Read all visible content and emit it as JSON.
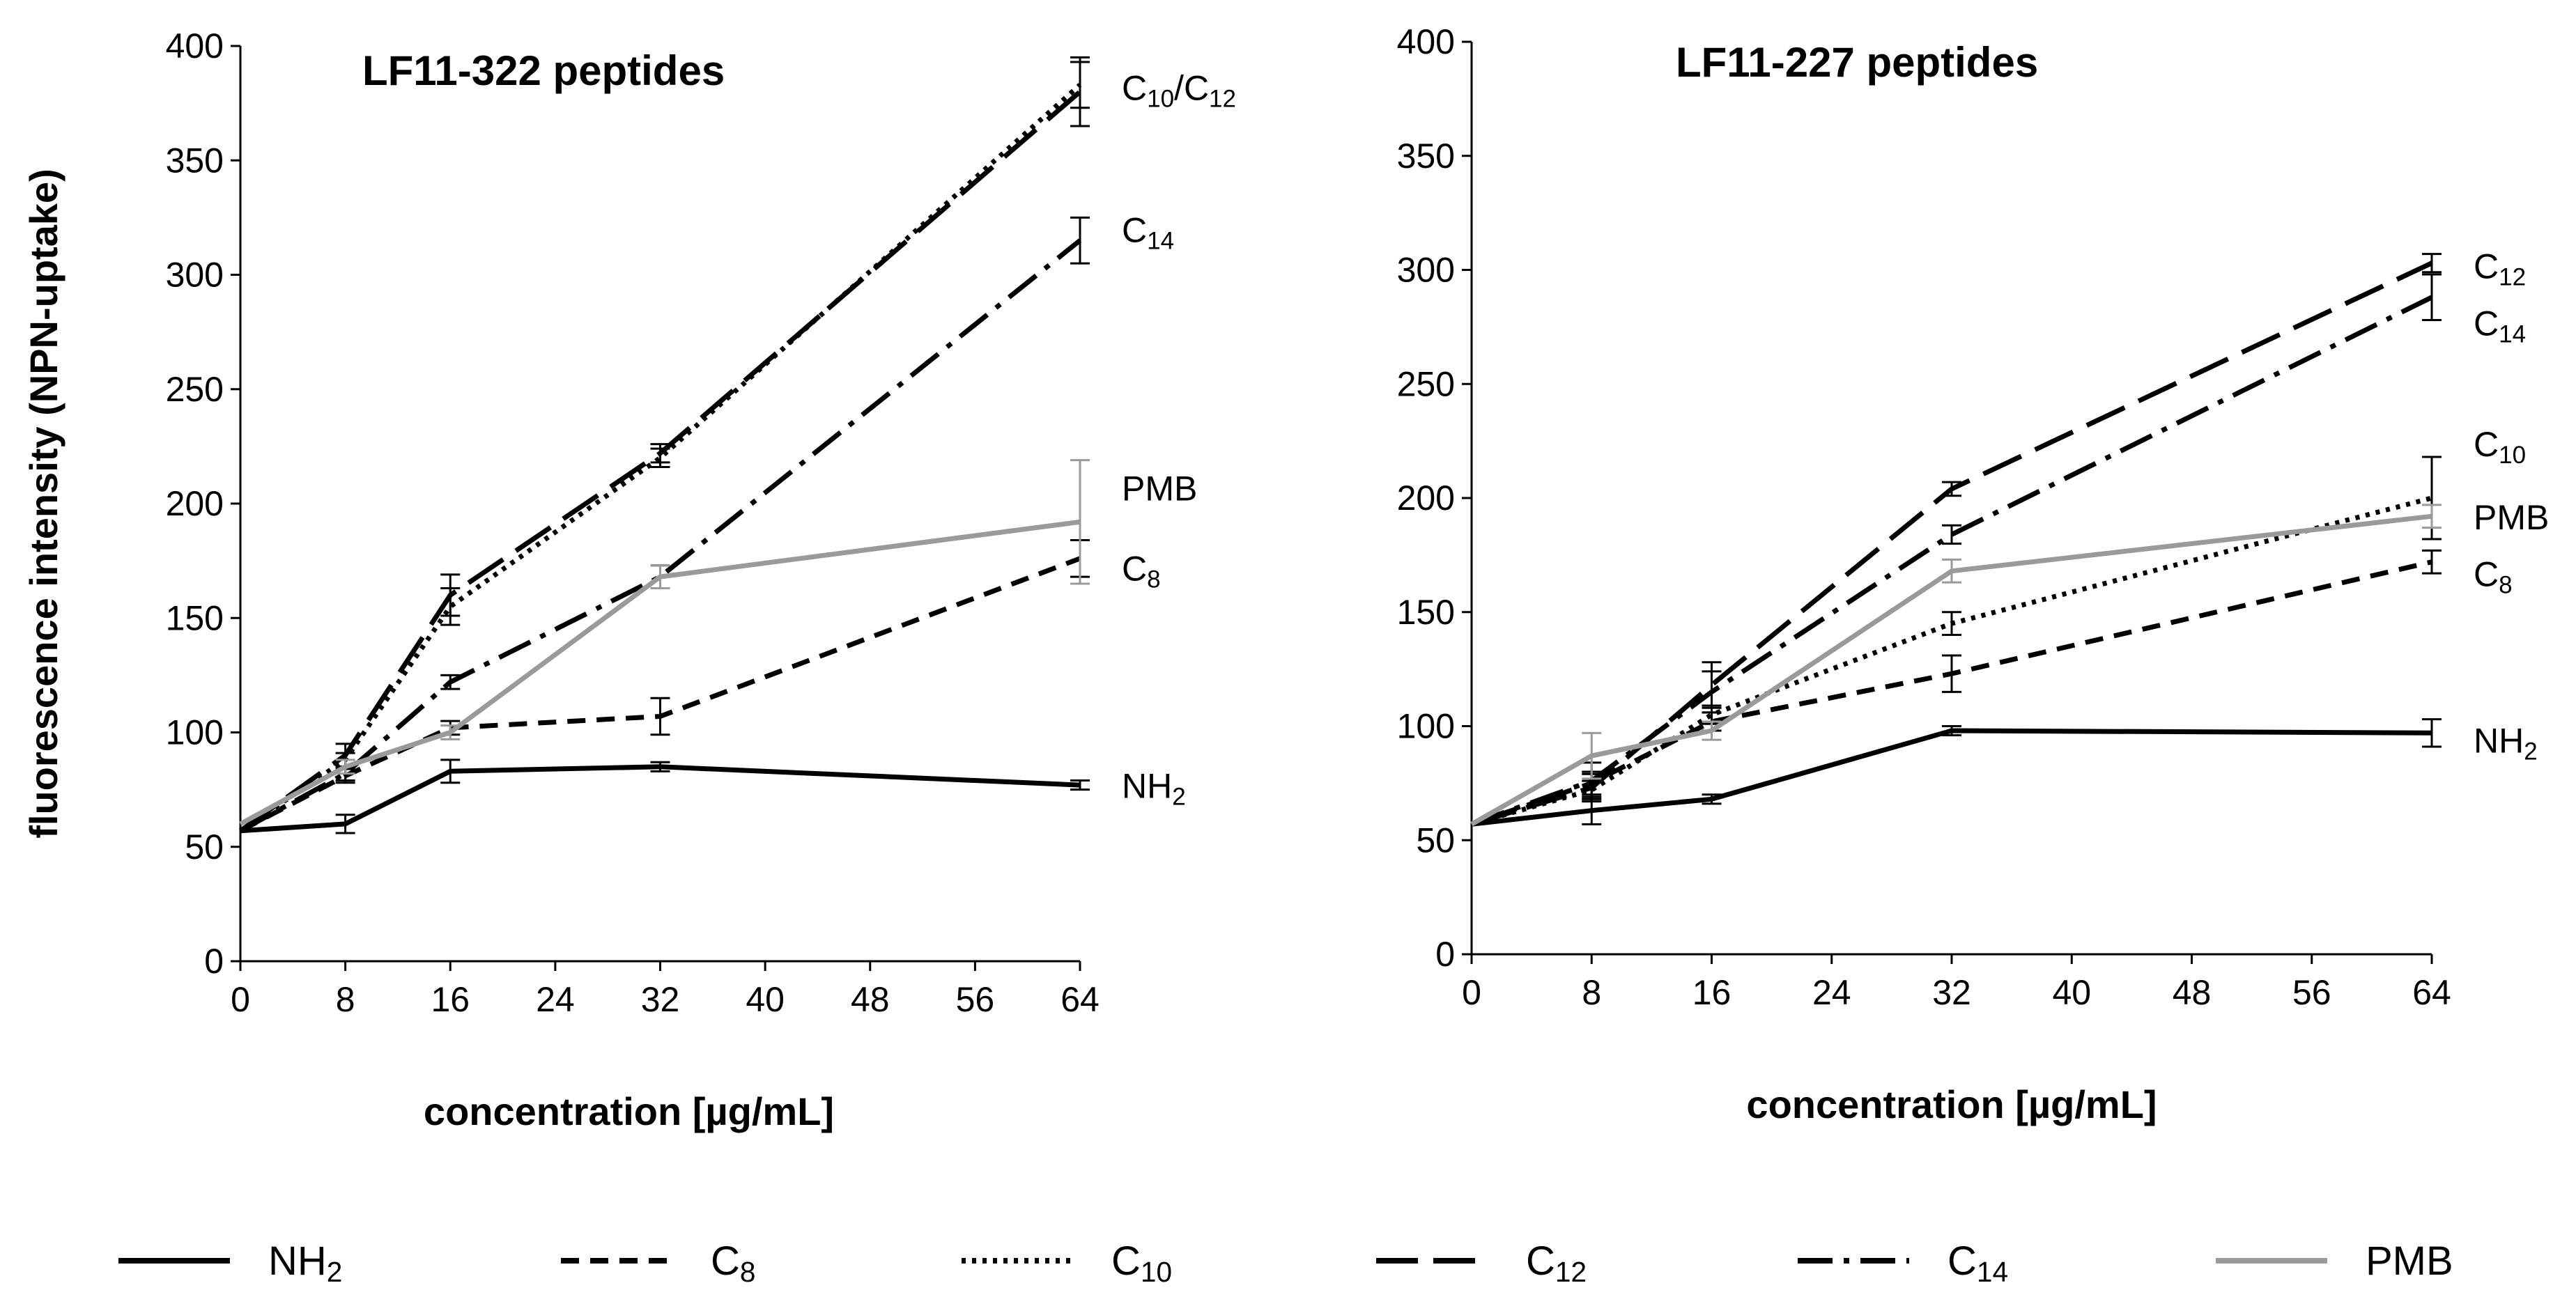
{
  "styles": {
    "NH2": {
      "color": "#000000",
      "dash": ""
    },
    "C8": {
      "color": "#000000",
      "dash": "26,16"
    },
    "C10": {
      "color": "#000000",
      "dash": "6,9"
    },
    "C12": {
      "color": "#000000",
      "dash": "60,22"
    },
    "C14": {
      "color": "#000000",
      "dash": "50,16,8,16"
    },
    "PMB": {
      "color": "#9a9a9a",
      "dash": ""
    }
  },
  "legend": [
    {
      "key": "NH2",
      "base": "NH",
      "sub": "2"
    },
    {
      "key": "C8",
      "base": "C",
      "sub": "8"
    },
    {
      "key": "C10",
      "base": "C",
      "sub": "10"
    },
    {
      "key": "C12",
      "base": "C",
      "sub": "12"
    },
    {
      "key": "C14",
      "base": "C",
      "sub": "14"
    },
    {
      "key": "PMB",
      "base": "PMB",
      "sub": ""
    }
  ],
  "chart_data": [
    {
      "type": "line",
      "title": "LF11-322 peptides",
      "xlabel": "concentration [µg/mL]",
      "ylabel": "fluorescence intensity (NPN-uptake)",
      "xlim": [
        0,
        64
      ],
      "ylim": [
        0,
        400
      ],
      "xticks": [
        0,
        8,
        16,
        24,
        32,
        40,
        48,
        56,
        64
      ],
      "yticks": [
        0,
        50,
        100,
        150,
        200,
        250,
        300,
        350,
        400
      ],
      "x": [
        0,
        8,
        16,
        32,
        64
      ],
      "series": [
        {
          "name": "NH2",
          "values": [
            57,
            60,
            83,
            85,
            77
          ],
          "errors": [
            0,
            4,
            5,
            2,
            2
          ]
        },
        {
          "name": "C8",
          "values": [
            57,
            81,
            102,
            107,
            176
          ],
          "errors": [
            0,
            3,
            3,
            8,
            8
          ]
        },
        {
          "name": "C10",
          "values": [
            57,
            88,
            155,
            220,
            383
          ],
          "errors": [
            0,
            3,
            8,
            4,
            10
          ]
        },
        {
          "name": "C12",
          "values": [
            57,
            90,
            160,
            222,
            380
          ],
          "errors": [
            0,
            5,
            9,
            4,
            15
          ]
        },
        {
          "name": "C14",
          "values": [
            57,
            82,
            122,
            168,
            315
          ],
          "errors": [
            0,
            3,
            3,
            5,
            10
          ]
        },
        {
          "name": "PMB",
          "values": [
            60,
            85,
            100,
            168,
            192
          ],
          "errors": [
            0,
            3,
            3,
            5,
            27
          ]
        }
      ],
      "end_labels": [
        {
          "base": "C",
          "sub": "10",
          "mid": "/C",
          "sub2": "12",
          "value": 380
        },
        {
          "base": "C",
          "sub": "14",
          "value": 318
        },
        {
          "base": "PMB",
          "sub": "",
          "value": 205
        },
        {
          "base": "C",
          "sub": "8",
          "value": 170
        },
        {
          "base": "NH",
          "sub": "2",
          "value": 75
        }
      ]
    },
    {
      "type": "line",
      "title": "LF11-227 peptides",
      "xlabel": "concentration [µg/mL]",
      "ylabel": "",
      "xlim": [
        0,
        64
      ],
      "ylim": [
        0,
        400
      ],
      "xticks": [
        0,
        8,
        16,
        24,
        32,
        40,
        48,
        56,
        64
      ],
      "yticks": [
        0,
        50,
        100,
        150,
        200,
        250,
        300,
        350,
        400
      ],
      "x": [
        0,
        8,
        16,
        32,
        64
      ],
      "series": [
        {
          "name": "NH2",
          "values": [
            57,
            63,
            68,
            98,
            97
          ],
          "errors": [
            0,
            6,
            2,
            2,
            6
          ]
        },
        {
          "name": "C8",
          "values": [
            57,
            75,
            102,
            123,
            172
          ],
          "errors": [
            0,
            5,
            4,
            8,
            5
          ]
        },
        {
          "name": "C10",
          "values": [
            57,
            72,
            105,
            145,
            200
          ],
          "errors": [
            0,
            4,
            4,
            5,
            18
          ]
        },
        {
          "name": "C12",
          "values": [
            57,
            73,
            118,
            204,
            303
          ],
          "errors": [
            0,
            6,
            10,
            3,
            4
          ]
        },
        {
          "name": "C14",
          "values": [
            57,
            76,
            115,
            184,
            288
          ],
          "errors": [
            0,
            8,
            9,
            4,
            10
          ]
        },
        {
          "name": "PMB",
          "values": [
            57,
            87,
            98,
            168,
            192
          ],
          "errors": [
            0,
            10,
            4,
            5,
            5
          ]
        }
      ],
      "end_labels": [
        {
          "base": "C",
          "sub": "12",
          "value": 300
        },
        {
          "base": "C",
          "sub": "14",
          "value": 275
        },
        {
          "base": "C",
          "sub": "10",
          "value": 222
        },
        {
          "base": "PMB",
          "sub": "",
          "value": 190
        },
        {
          "base": "C",
          "sub": "8",
          "value": 165
        },
        {
          "base": "NH",
          "sub": "2",
          "value": 92
        }
      ]
    }
  ]
}
